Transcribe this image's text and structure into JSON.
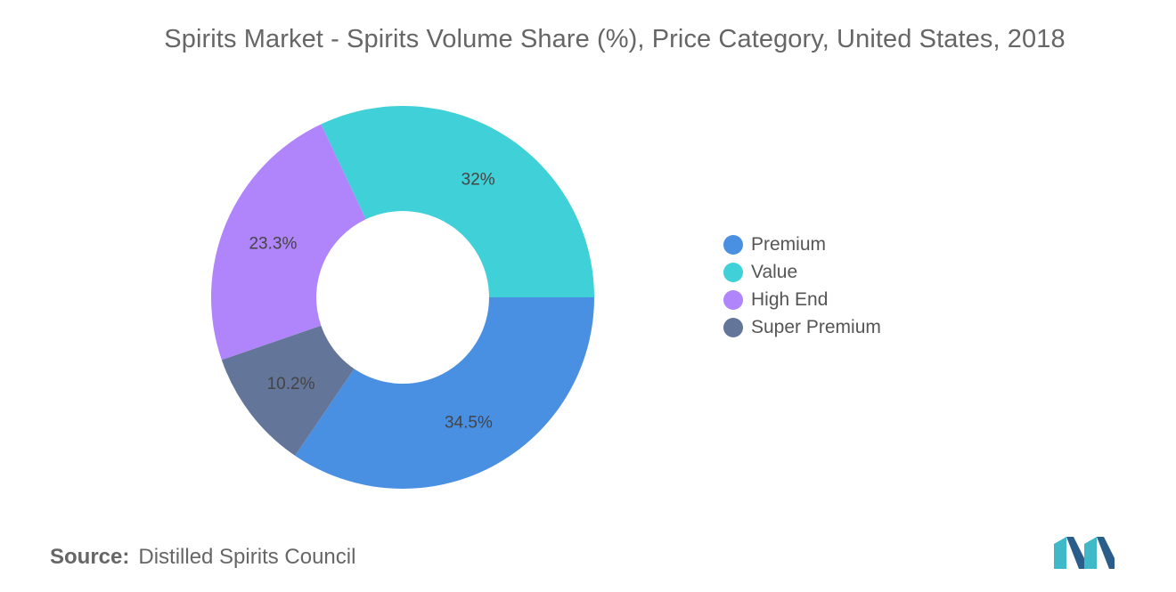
{
  "title": "Spirits Market - Spirits Volume Share (%), Price Category, United States, 2018",
  "source": {
    "label": "Source:",
    "text": "Distilled Spirits Council"
  },
  "chart_data": {
    "type": "pie",
    "variant": "donut",
    "title": "Spirits Market - Spirits Volume Share (%), Price Category, United States, 2018",
    "categories": [
      "Premium",
      "Super Premium",
      "High End",
      "Value"
    ],
    "values": [
      34.5,
      10.2,
      23.3,
      32
    ],
    "labels": [
      "34.5%",
      "10.2%",
      "23.3%",
      "32%"
    ],
    "colors": [
      "#4a90e2",
      "#637598",
      "#b084fa",
      "#40d0d8"
    ],
    "legend_position": "right",
    "legend": [
      {
        "label": "Premium",
        "color": "#4a90e2"
      },
      {
        "label": "Value",
        "color": "#40d0d8"
      },
      {
        "label": "High End",
        "color": "#b084fa"
      },
      {
        "label": "Super Premium",
        "color": "#637598"
      }
    ]
  },
  "logo": {
    "icon": "mordor-logo-icon",
    "colors": [
      "#3fb8c8",
      "#2a5d8a"
    ]
  }
}
